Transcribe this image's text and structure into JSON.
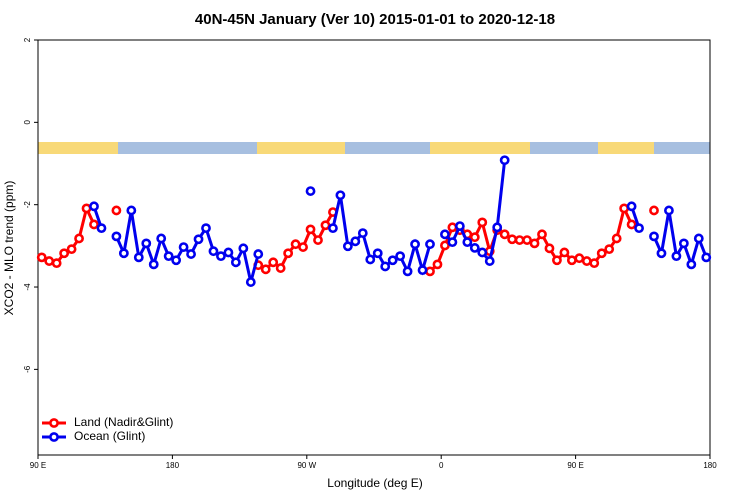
{
  "chart_data": {
    "type": "line",
    "title": "40N-45N January (Ver 10)   2015-01-01 to 2020-12-18",
    "xlabel": "Longitude (deg E)",
    "ylabel": "XCO2 - MLO trend (ppm)",
    "xlim": [
      90,
      540
    ],
    "ylim": [
      -8.08,
      2
    ],
    "xticks": [
      {
        "value": 90,
        "label": "90 E"
      },
      180,
      {
        "value": 270,
        "label": "90 W"
      },
      {
        "value": 360,
        "label": "0"
      },
      {
        "value": 450,
        "label": "90 E"
      },
      {
        "value": 540,
        "label": "180"
      }
    ],
    "yticks": [
      2,
      0,
      -2,
      -4,
      -6
    ],
    "legend": "bottomleft",
    "x": [
      92.5,
      97.5,
      102.5,
      107.5,
      112.5,
      117.5,
      122.5,
      127.5,
      132.5,
      137.5,
      142.5,
      147.5,
      152.5,
      157.5,
      162.5,
      167.5,
      172.5,
      177.5,
      182.5,
      187.5,
      192.5,
      197.5,
      202.5,
      207.5,
      212.5,
      217.5,
      222.5,
      227.5,
      232.5,
      237.5,
      242.5,
      247.5,
      252.5,
      257.5,
      262.5,
      267.5,
      272.5,
      277.5,
      282.5,
      287.5,
      292.5,
      297.5,
      302.5,
      307.5,
      312.5,
      317.5,
      322.5,
      327.5,
      332.5,
      337.5,
      342.5,
      347.5,
      352.5,
      357.5,
      362.5,
      367.5,
      372.5,
      377.5,
      382.5,
      387.5,
      392.5,
      397.5,
      402.5,
      407.5,
      412.5,
      417.5,
      422.5,
      427.5,
      432.5,
      437.5,
      442.5,
      447.5,
      452.5,
      457.5,
      462.5,
      467.5,
      472.5,
      477.5,
      482.5,
      487.5,
      492.5,
      497.5,
      502.5,
      507.5,
      512.5,
      517.5,
      522.5,
      527.5,
      532.5,
      537.5
    ],
    "series": [
      {
        "name": "Land (Nadir&Glint)",
        "color": "#ff0000",
        "values": [
          -3.28,
          -3.37,
          -3.42,
          -3.18,
          -3.08,
          -2.82,
          -2.09,
          -2.48,
          null,
          null,
          -2.14,
          null,
          null,
          null,
          null,
          null,
          null,
          null,
          null,
          null,
          null,
          null,
          null,
          null,
          null,
          null,
          null,
          null,
          null,
          -3.47,
          -3.57,
          -3.4,
          -3.54,
          -3.18,
          -2.96,
          -3.03,
          -2.6,
          -2.86,
          -2.5,
          -2.18,
          null,
          null,
          null,
          null,
          null,
          null,
          null,
          null,
          null,
          null,
          null,
          null,
          -3.62,
          -3.45,
          -2.99,
          -2.55,
          -2.62,
          -2.72,
          -2.79,
          -2.43,
          -3.13,
          -2.62,
          -2.72,
          -2.84,
          -2.86,
          -2.86,
          -2.94,
          -2.72,
          -3.06,
          -3.35,
          -3.16,
          -3.35,
          -3.3,
          -3.37,
          -3.42,
          -3.18,
          -3.08,
          -2.82,
          -2.09,
          -2.48,
          null,
          null,
          -2.14,
          null,
          null,
          null,
          null,
          null,
          null,
          null
        ]
      },
      {
        "name": "Ocean (Glint)",
        "color": "#0000ee",
        "values": [
          null,
          null,
          null,
          null,
          null,
          null,
          null,
          -2.04,
          -2.57,
          null,
          -2.77,
          -3.18,
          -2.14,
          -3.28,
          -2.94,
          -3.45,
          -2.82,
          -3.25,
          -3.35,
          -3.03,
          -3.2,
          -2.84,
          -2.57,
          -3.13,
          -3.25,
          -3.16,
          -3.4,
          -3.06,
          -3.88,
          -3.2,
          null,
          null,
          null,
          null,
          null,
          null,
          -1.67,
          null,
          null,
          -2.57,
          -1.77,
          -3.01,
          -2.89,
          -2.69,
          -3.33,
          -3.18,
          -3.5,
          -3.35,
          -3.25,
          -3.62,
          -2.96,
          -3.59,
          -2.96,
          null,
          -2.72,
          -2.91,
          -2.52,
          -2.91,
          -3.05,
          -3.16,
          -3.37,
          -2.55,
          -0.92,
          null,
          null,
          null,
          null,
          null,
          null,
          null,
          null,
          null,
          null,
          null,
          null,
          null,
          null,
          null,
          null,
          -2.04,
          -2.57,
          null,
          -2.77,
          -3.18,
          -2.14,
          -3.25,
          -2.94,
          -3.45,
          -2.82,
          -3.28
        ]
      }
    ]
  }
}
